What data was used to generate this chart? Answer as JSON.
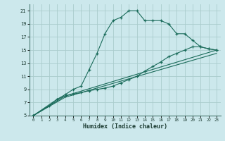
{
  "xlabel": "Humidex (Indice chaleur)",
  "bg_color": "#cce8ec",
  "grid_color": "#aacccc",
  "line_color": "#1a6b5a",
  "xlim": [
    -0.5,
    23.5
  ],
  "ylim": [
    5,
    22
  ],
  "xticks": [
    0,
    1,
    2,
    3,
    4,
    5,
    6,
    7,
    8,
    9,
    10,
    11,
    12,
    13,
    14,
    15,
    16,
    17,
    18,
    19,
    20,
    21,
    22,
    23
  ],
  "yticks": [
    5,
    7,
    9,
    11,
    13,
    15,
    17,
    19,
    21
  ],
  "line1_x": [
    0,
    2,
    3,
    4,
    5,
    6,
    7,
    8,
    9,
    10,
    11,
    12,
    13,
    14,
    15,
    16,
    17,
    18,
    19,
    20,
    21,
    22,
    23
  ],
  "line1_y": [
    5,
    6.5,
    7.5,
    8.2,
    9.0,
    9.5,
    12.0,
    14.5,
    17.5,
    19.5,
    20.0,
    21.0,
    21.0,
    19.5,
    19.5,
    19.5,
    19.0,
    17.5,
    17.5,
    16.5,
    15.5,
    15.2,
    15.0
  ],
  "line2_x": [
    0,
    3,
    4,
    5,
    6,
    7,
    8,
    9,
    10,
    11,
    12,
    13,
    14,
    15,
    16,
    17,
    18,
    19,
    20,
    21,
    22,
    23
  ],
  "line2_y": [
    5,
    7.5,
    8.0,
    8.3,
    8.5,
    8.8,
    9.0,
    9.2,
    9.5,
    10.0,
    10.5,
    11.0,
    11.8,
    12.5,
    13.2,
    14.0,
    14.5,
    15.0,
    15.5,
    15.5,
    15.2,
    15.0
  ],
  "line3_x": [
    0,
    4,
    23
  ],
  "line3_y": [
    5,
    8.0,
    15.0
  ],
  "line4_x": [
    0,
    4,
    23
  ],
  "line4_y": [
    5,
    7.8,
    14.5
  ]
}
